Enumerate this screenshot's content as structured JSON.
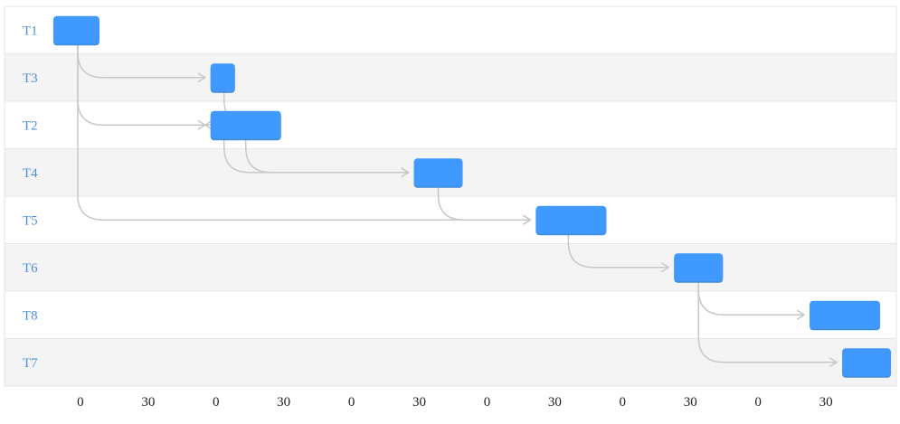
{
  "chart_data": {
    "type": "gantt",
    "rows": [
      "T1",
      "T3",
      "T2",
      "T4",
      "T5",
      "T6",
      "T8",
      "T7"
    ],
    "tasks": [
      {
        "id": "T1",
        "start": -10,
        "end": 7
      },
      {
        "id": "T3",
        "start": 48,
        "end": 57
      },
      {
        "id": "T2",
        "start": 48,
        "end": 74
      },
      {
        "id": "T4",
        "start": 123,
        "end": 141
      },
      {
        "id": "T5",
        "start": 168,
        "end": 194
      },
      {
        "id": "T6",
        "start": 219,
        "end": 237
      },
      {
        "id": "T8",
        "start": 269,
        "end": 295
      },
      {
        "id": "T7",
        "start": 281,
        "end": 299
      }
    ],
    "dependencies": [
      {
        "from": "T1",
        "to": "T3",
        "exit_offset": 9
      },
      {
        "from": "T1",
        "to": "T2",
        "exit_offset": 9
      },
      {
        "from": "T1",
        "to": "T5",
        "exit_offset": 9
      },
      {
        "from": "T3",
        "to": "T2",
        "exit_offset": 5
      },
      {
        "from": "T2",
        "to": "T4",
        "exit_offset": 5
      },
      {
        "from": "T2",
        "to": "T4",
        "exit_offset": 13
      },
      {
        "from": "T4",
        "to": "T5",
        "exit_offset": 9
      },
      {
        "from": "T5",
        "to": "T6",
        "exit_offset": 12
      },
      {
        "from": "T6",
        "to": "T8",
        "exit_offset": 9
      },
      {
        "from": "T6",
        "to": "T7",
        "exit_offset": 9
      }
    ],
    "x_ticks": [
      {
        "value": 0,
        "label": "0"
      },
      {
        "value": 25,
        "label": "30"
      },
      {
        "value": 50,
        "label": "0"
      },
      {
        "value": 75,
        "label": "30"
      },
      {
        "value": 100,
        "label": "0"
      },
      {
        "value": 125,
        "label": "30"
      },
      {
        "value": 150,
        "label": "0"
      },
      {
        "value": 175,
        "label": "30"
      },
      {
        "value": 200,
        "label": "0"
      },
      {
        "value": 225,
        "label": "30"
      },
      {
        "value": 250,
        "label": "0"
      },
      {
        "value": 275,
        "label": "30"
      }
    ],
    "xlim": [
      -28,
      301
    ],
    "colors": {
      "bar": "#4099ff",
      "bar_edge": "#2f7fd6",
      "label": "#4a90e2",
      "row_odd": "#ffffff",
      "row_even": "#f4f4f4",
      "grid": "#e6e6e6",
      "arrow": "#c8c8c8"
    }
  }
}
